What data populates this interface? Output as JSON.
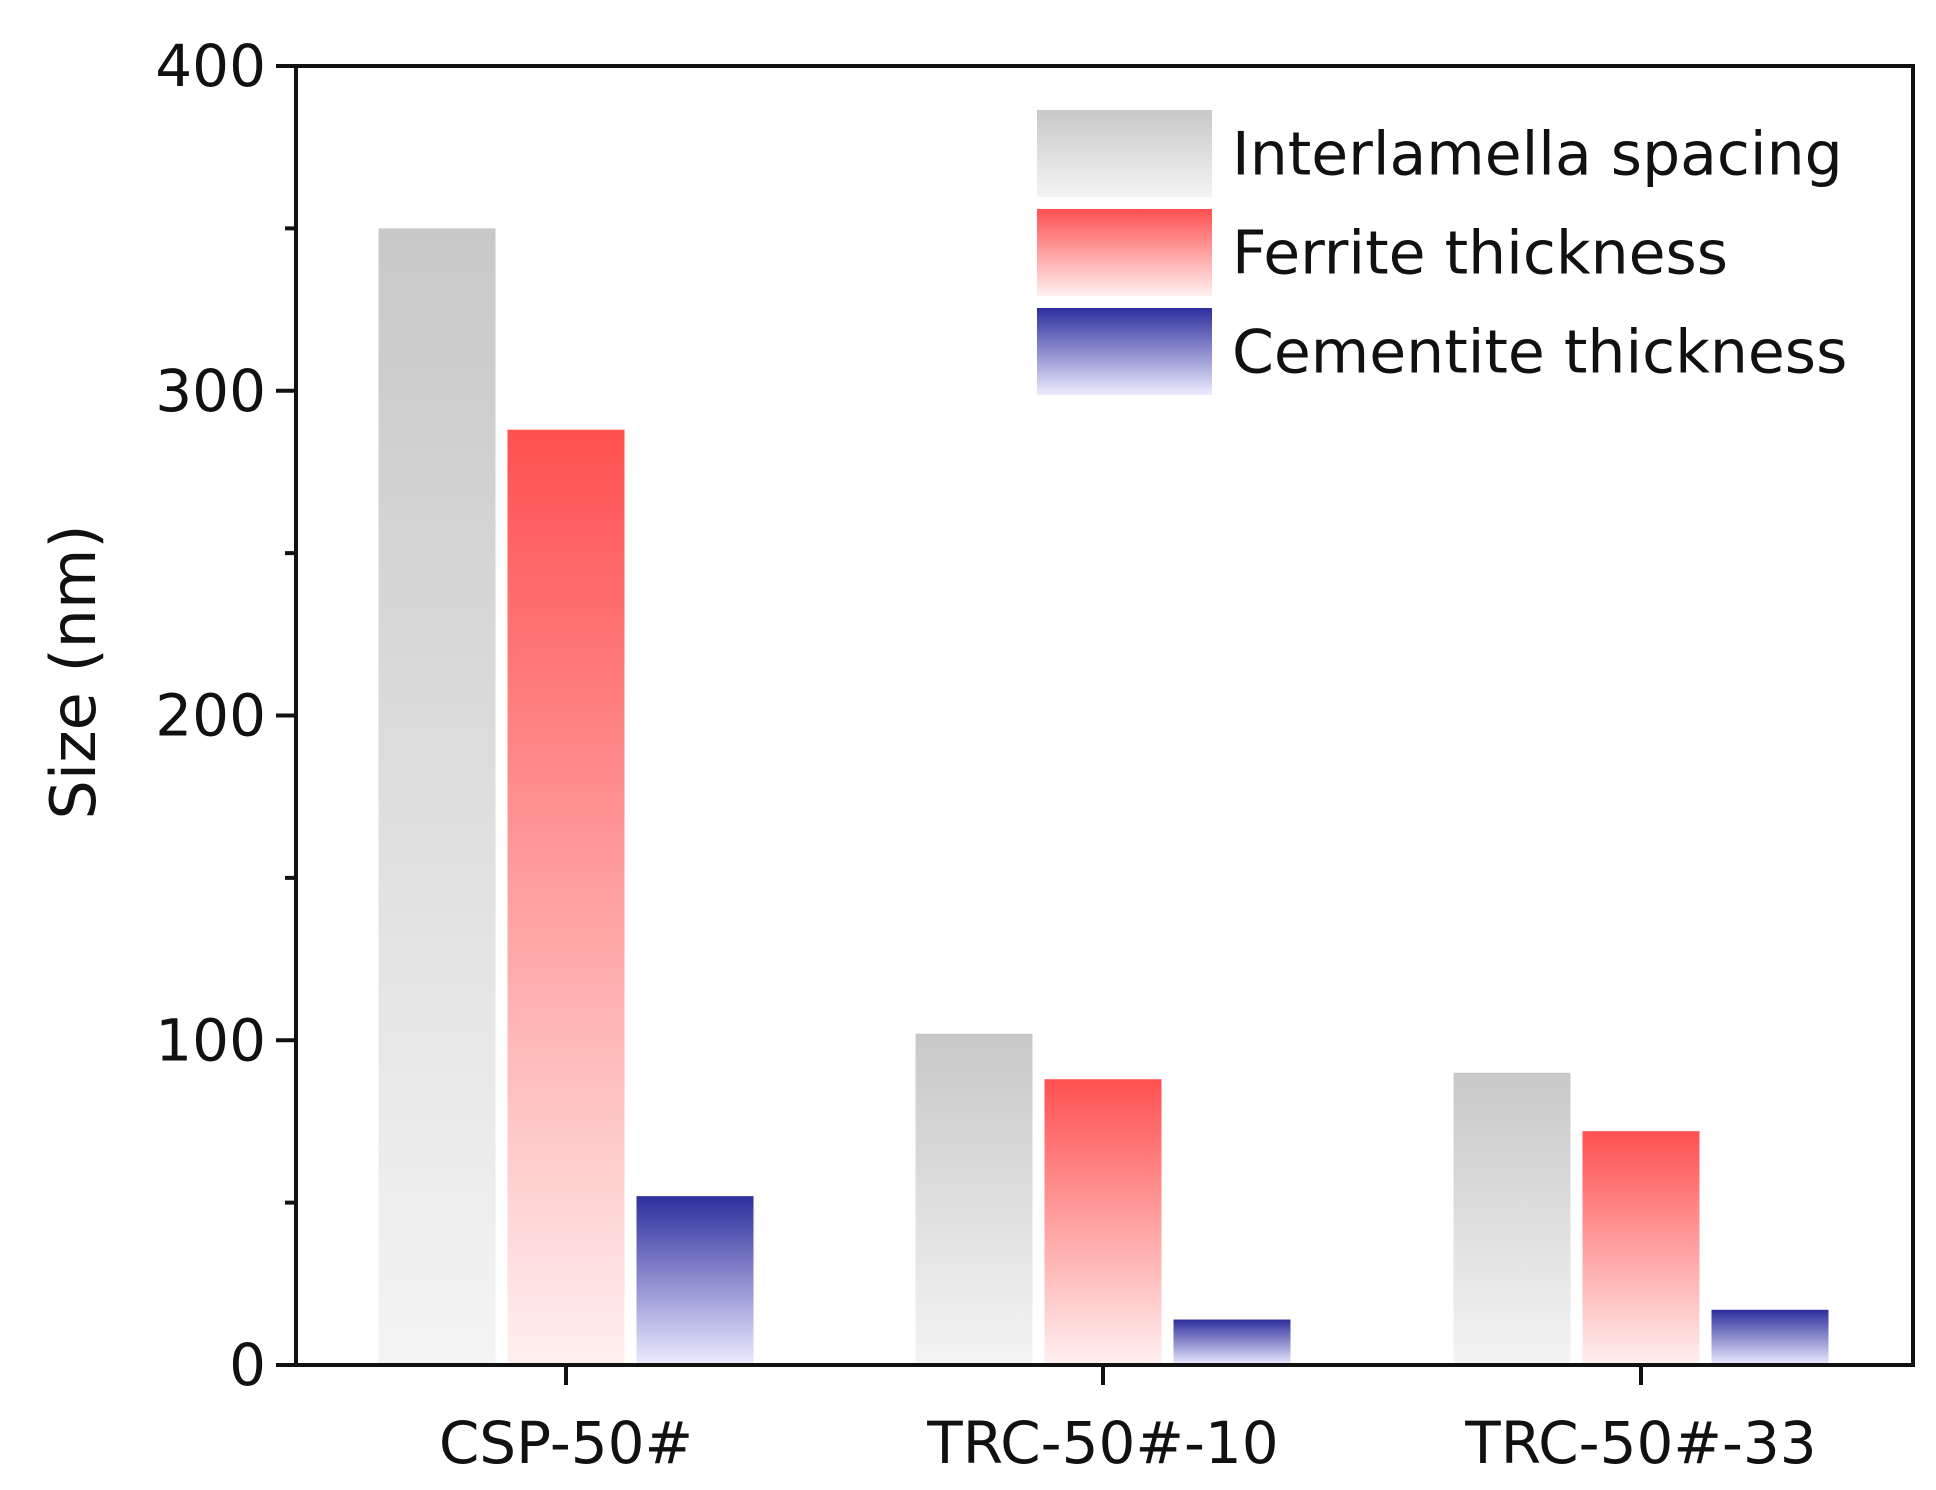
{
  "chart_data": {
    "type": "bar",
    "title": "",
    "xlabel": "",
    "ylabel": "Size (nm)",
    "ylim": [
      0,
      400
    ],
    "yticks": [
      0,
      100,
      200,
      300,
      400
    ],
    "categories": [
      "CSP-50#",
      "TRC-50#-10",
      "TRC-50#-33"
    ],
    "series": [
      {
        "name": "Interlamella spacing",
        "values": [
          350,
          102,
          90
        ],
        "color_top": "#c8c8c8",
        "color_bottom": "#f4f4f4"
      },
      {
        "name": "Ferrite thickness",
        "values": [
          288,
          88,
          72
        ],
        "color_top": "#ff5050",
        "color_bottom": "#fff0f0"
      },
      {
        "name": "Cementite thickness",
        "values": [
          52,
          14,
          17
        ],
        "color_top": "#2e2e9e",
        "color_bottom": "#ececff"
      }
    ],
    "legend_position": "top-right",
    "grid": false
  }
}
